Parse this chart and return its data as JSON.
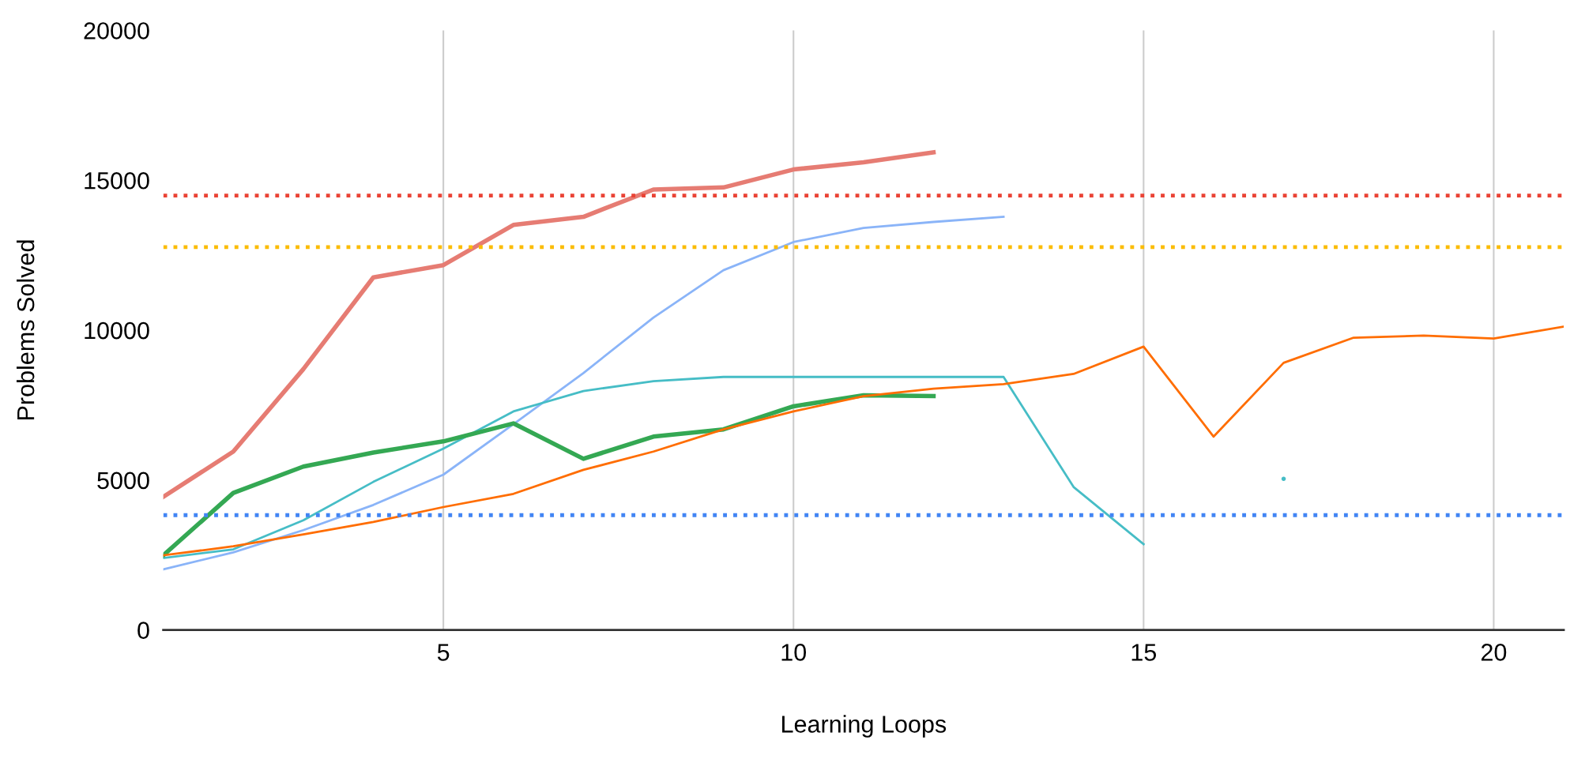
{
  "chart_data": {
    "type": "line",
    "xlabel": "Learning Loops",
    "ylabel": "Problems Solved",
    "xlim": [
      1,
      21
    ],
    "ylim": [
      0,
      20000
    ],
    "xticks": [
      5,
      10,
      15,
      20
    ],
    "yticks": [
      0,
      5000,
      10000,
      15000,
      20000
    ],
    "grid": "x",
    "legend": false,
    "line_style": "solid",
    "series": [
      {
        "color": "#e67c73",
        "x": [
          1,
          2,
          3,
          4,
          5,
          6,
          7,
          8,
          9,
          10,
          11,
          12
        ],
        "values": [
          4440,
          5950,
          8700,
          11760,
          12170,
          13510,
          13780,
          14690,
          14760,
          15360,
          15600,
          15930
        ]
      },
      {
        "color": "#8ab4f8",
        "x": [
          1,
          2,
          3,
          4,
          5,
          6,
          7,
          8,
          9,
          10,
          11,
          12,
          13
        ],
        "values": [
          2020,
          2590,
          3330,
          4170,
          5180,
          6860,
          8570,
          10420,
          12000,
          12940,
          13410,
          13610,
          13780
        ]
      },
      {
        "color": "#46bdc6",
        "x": [
          1,
          2,
          3,
          4,
          5,
          6,
          7,
          8,
          9,
          10,
          11,
          12,
          13,
          14,
          15,
          16,
          17
        ],
        "values": [
          2400,
          2690,
          3660,
          4940,
          6050,
          7290,
          7970,
          8300,
          8440,
          8440,
          8440,
          8440,
          8440,
          4770,
          2860,
          null,
          5040
        ]
      },
      {
        "color": "#34a853",
        "x": [
          1,
          2,
          3,
          4,
          5,
          6,
          7,
          8,
          9,
          10,
          11,
          12
        ],
        "values": [
          2490,
          4570,
          5450,
          5920,
          6290,
          6890,
          5710,
          6450,
          6690,
          7460,
          7830,
          7800
        ]
      },
      {
        "color": "#ff6d01",
        "x": [
          1,
          2,
          3,
          4,
          5,
          6,
          7,
          8,
          9,
          10,
          11,
          12,
          13,
          14,
          15,
          16,
          17,
          18,
          19,
          20,
          21
        ],
        "values": [
          2490,
          2790,
          3190,
          3600,
          4100,
          4540,
          5340,
          5950,
          6690,
          7290,
          7800,
          8050,
          8200,
          8540,
          9450,
          6450,
          8910,
          9750,
          9820,
          9720,
          10120
        ]
      }
    ],
    "ref_lines": [
      {
        "axis": "y",
        "value": 14490,
        "color": "#ea4335",
        "line_style": "dotted"
      },
      {
        "axis": "y",
        "value": 12770,
        "color": "#fbbc04",
        "line_style": "dotted"
      },
      {
        "axis": "y",
        "value": 3830,
        "color": "#4285f4",
        "line_style": "dotted"
      }
    ]
  }
}
